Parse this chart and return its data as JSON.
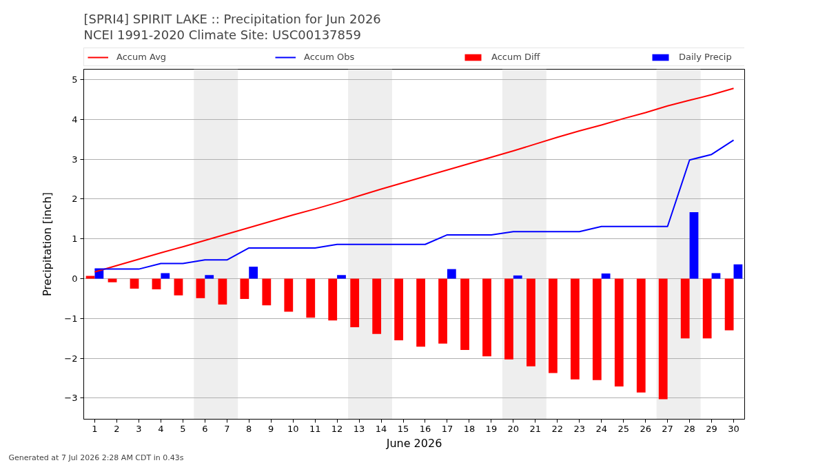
{
  "chart_data": {
    "type": "bar",
    "title": "[SPRI4] SPIRIT LAKE :: Precipitation for Jun 2026",
    "subtitle": "NCEI 1991-2020 Climate Site: USC00137859",
    "xlabel": "June 2026",
    "ylabel": "Precipitation [inch]",
    "annotations": [
      "Generated at 7 Jul 2026 2:28 AM CDT in 0.43s"
    ],
    "x": [
      1,
      2,
      3,
      4,
      5,
      6,
      7,
      8,
      9,
      10,
      11,
      12,
      13,
      14,
      15,
      16,
      17,
      18,
      19,
      20,
      21,
      22,
      23,
      24,
      25,
      26,
      27,
      28,
      29,
      30
    ],
    "xlim": [
      0.5,
      30.5
    ],
    "xticks": [
      1,
      2,
      3,
      4,
      5,
      6,
      7,
      8,
      9,
      10,
      11,
      12,
      13,
      14,
      15,
      16,
      17,
      18,
      19,
      20,
      21,
      22,
      23,
      24,
      25,
      26,
      27,
      28,
      29,
      30
    ],
    "ylim": [
      -3.53,
      5.26
    ],
    "yticks": [
      {
        "value": -3,
        "label": "−3"
      },
      {
        "value": -2,
        "label": "−2"
      },
      {
        "value": -1,
        "label": "−1"
      },
      0,
      1,
      2,
      3,
      4,
      5
    ],
    "grid": "y",
    "legend": "top",
    "bands": [
      {
        "axis": "x",
        "from": 5.5,
        "to": 7.5,
        "color": "#eeeeee"
      },
      {
        "axis": "x",
        "from": 12.5,
        "to": 14.5,
        "color": "#eeeeee"
      },
      {
        "axis": "x",
        "from": 19.5,
        "to": 21.5,
        "color": "#eeeeee"
      },
      {
        "axis": "x",
        "from": 26.5,
        "to": 28.5,
        "color": "#eeeeee"
      }
    ],
    "series": [
      {
        "name": "Accum Avg",
        "type": "line",
        "color": "#ff0000",
        "values": [
          0.17,
          0.33,
          0.49,
          0.65,
          0.8,
          0.96,
          1.12,
          1.28,
          1.44,
          1.6,
          1.75,
          1.91,
          2.08,
          2.25,
          2.41,
          2.57,
          2.73,
          2.89,
          3.05,
          3.21,
          3.38,
          3.55,
          3.71,
          3.86,
          4.02,
          4.17,
          4.34,
          4.48,
          4.62,
          4.78
        ]
      },
      {
        "name": "Accum Obs",
        "type": "line",
        "color": "#0000ff",
        "values": [
          0.24,
          0.24,
          0.24,
          0.38,
          0.38,
          0.47,
          0.47,
          0.77,
          0.77,
          0.77,
          0.77,
          0.86,
          0.86,
          0.86,
          0.86,
          0.86,
          1.1,
          1.1,
          1.1,
          1.18,
          1.18,
          1.18,
          1.18,
          1.31,
          1.31,
          1.31,
          1.31,
          2.98,
          3.12,
          3.48
        ]
      },
      {
        "name": "Accum Diff",
        "color": "#ff0000",
        "values": [
          0.07,
          -0.09,
          -0.25,
          -0.27,
          -0.42,
          -0.49,
          -0.65,
          -0.51,
          -0.67,
          -0.83,
          -0.98,
          -1.05,
          -1.22,
          -1.39,
          -1.55,
          -1.71,
          -1.63,
          -1.79,
          -1.95,
          -2.03,
          -2.2,
          -2.37,
          -2.53,
          -2.55,
          -2.71,
          -2.86,
          -3.03,
          -1.5,
          -1.5,
          -1.3
        ]
      },
      {
        "name": "Daily Precip",
        "color": "#0000ff",
        "values": [
          0.24,
          0,
          0,
          0.14,
          0,
          0.09,
          0,
          0.3,
          0,
          0,
          0,
          0.09,
          0,
          0,
          0,
          0,
          0.24,
          0,
          0,
          0.08,
          0,
          0,
          0,
          0.13,
          0,
          0,
          0,
          1.67,
          0.14,
          0.36
        ]
      }
    ]
  }
}
